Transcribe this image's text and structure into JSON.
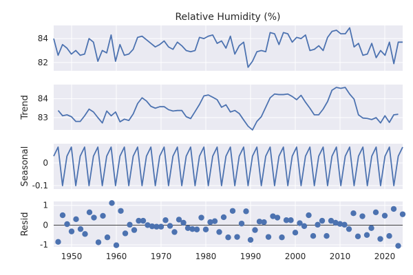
{
  "chart_data": [
    {
      "type": "line",
      "title": "Relative Humidity (%)",
      "ylabel": "",
      "x_start": 1946,
      "x_end": 2024,
      "xlim": [
        1946,
        2024
      ],
      "ylim": [
        81.3,
        85.1
      ],
      "yticks": [
        82,
        84
      ],
      "grid": true,
      "values": [
        84.0,
        82.6,
        83.5,
        83.2,
        82.7,
        83.0,
        82.6,
        82.7,
        84.0,
        83.7,
        82.1,
        83.0,
        82.8,
        84.3,
        82.1,
        83.5,
        82.6,
        82.7,
        83.1,
        84.1,
        84.2,
        83.9,
        83.6,
        83.3,
        83.5,
        83.8,
        83.3,
        83.1,
        83.7,
        83.4,
        83.0,
        82.9,
        83.0,
        84.1,
        84.0,
        84.2,
        84.3,
        83.6,
        83.8,
        83.2,
        84.2,
        82.7,
        83.4,
        83.7,
        81.6,
        82.1,
        82.9,
        83.0,
        82.9,
        84.5,
        84.4,
        83.5,
        84.5,
        84.4,
        83.7,
        84.1,
        84.0,
        84.3,
        83.0,
        83.1,
        83.4,
        83.0,
        84.1,
        84.6,
        84.7,
        84.4,
        84.4,
        84.9,
        83.3,
        83.6,
        82.6,
        82.7,
        83.6,
        82.4,
        83.0,
        82.6,
        83.7,
        81.9,
        83.7,
        83.7
      ]
    },
    {
      "type": "line",
      "title": "",
      "ylabel": "Trend",
      "x_start": 1947,
      "x_end": 2023,
      "xlim": [
        1946,
        2024
      ],
      "ylim": [
        82.35,
        84.75
      ],
      "yticks": [
        83,
        84
      ],
      "grid": true,
      "values": [
        83.38,
        83.1,
        83.15,
        83.05,
        82.8,
        82.8,
        83.1,
        83.45,
        83.3,
        83.0,
        82.72,
        83.35,
        83.1,
        83.3,
        82.78,
        82.92,
        82.85,
        83.2,
        83.75,
        84.05,
        83.88,
        83.6,
        83.5,
        83.58,
        83.58,
        83.42,
        83.35,
        83.38,
        83.38,
        83.05,
        82.95,
        83.32,
        83.7,
        84.15,
        84.2,
        84.08,
        83.95,
        83.55,
        83.68,
        83.3,
        83.38,
        83.22,
        82.88,
        82.55,
        82.35,
        82.8,
        83.05,
        83.55,
        84.05,
        84.25,
        84.22,
        84.22,
        84.25,
        84.12,
        83.95,
        84.18,
        83.82,
        83.5,
        83.15,
        83.15,
        83.45,
        83.85,
        84.45,
        84.6,
        84.55,
        84.6,
        84.25,
        83.98,
        83.15,
        82.98,
        82.96,
        82.9,
        83.0,
        82.72,
        83.1,
        82.75,
        83.15,
        83.18
      ]
    },
    {
      "type": "line",
      "title": "",
      "ylabel": "Seasonal",
      "x_start": 1946,
      "x_end": 2024,
      "xlim": [
        1946,
        2024
      ],
      "ylim": [
        -0.115,
        0.085
      ],
      "yticks": [
        -0.1,
        0.0
      ],
      "grid": true,
      "cycle": [
        0.03,
        0.07,
        -0.1,
        0.03,
        0.07,
        -0.1,
        0.03,
        0.07,
        -0.1,
        0.03,
        0.07,
        -0.1,
        0.03,
        0.07,
        -0.1,
        0.03,
        0.07,
        -0.1,
        0.03,
        0.07,
        -0.1,
        0.03,
        0.07,
        -0.1,
        0.03,
        0.07,
        -0.1,
        0.03,
        0.07,
        -0.1,
        0.03,
        0.07,
        -0.1,
        0.03,
        0.07,
        -0.1,
        0.03,
        0.07,
        -0.1,
        0.03,
        0.07,
        -0.1,
        0.03,
        0.07,
        -0.1,
        0.03,
        0.07,
        -0.1,
        0.03,
        0.07,
        -0.1,
        0.03,
        0.07,
        -0.1,
        0.03,
        0.07,
        -0.1,
        0.03,
        0.07,
        -0.1,
        0.03,
        0.07,
        -0.1,
        0.03,
        0.07,
        -0.1,
        0.03,
        0.07,
        -0.1,
        0.03,
        0.07,
        -0.1,
        0.03,
        0.07,
        -0.1,
        0.03,
        0.07,
        -0.1,
        0.03,
        0.07
      ]
    },
    {
      "type": "scatter",
      "title": "",
      "ylabel": "Resid",
      "xlabel": "",
      "xlim": [
        1946,
        2024
      ],
      "ylim": [
        -1.1,
        1.2
      ],
      "yticks": [
        -1,
        0,
        1
      ],
      "xticks": [
        1950,
        1960,
        1970,
        1980,
        1990,
        2000,
        2010,
        2020
      ],
      "grid": true,
      "zero_line": true,
      "points": [
        {
          "x": 1947,
          "y": -0.85
        },
        {
          "x": 1948,
          "y": 0.5
        },
        {
          "x": 1949,
          "y": 0.05
        },
        {
          "x": 1950,
          "y": -0.32
        },
        {
          "x": 1951,
          "y": 0.3
        },
        {
          "x": 1952,
          "y": -0.2
        },
        {
          "x": 1953,
          "y": -0.45
        },
        {
          "x": 1954,
          "y": 0.65
        },
        {
          "x": 1955,
          "y": 0.38
        },
        {
          "x": 1956,
          "y": -0.87
        },
        {
          "x": 1957,
          "y": 0.47
        },
        {
          "x": 1958,
          "y": -0.62
        },
        {
          "x": 1959,
          "y": 1.12
        },
        {
          "x": 1960,
          "y": -1.02
        },
        {
          "x": 1961,
          "y": 0.72
        },
        {
          "x": 1962,
          "y": -0.42
        },
        {
          "x": 1963,
          "y": 0.02
        },
        {
          "x": 1964,
          "y": -0.25
        },
        {
          "x": 1965,
          "y": 0.22
        },
        {
          "x": 1966,
          "y": 0.22
        },
        {
          "x": 1967,
          "y": 0.0
        },
        {
          "x": 1968,
          "y": -0.06
        },
        {
          "x": 1969,
          "y": -0.08
        },
        {
          "x": 1970,
          "y": -0.08
        },
        {
          "x": 1971,
          "y": 0.25
        },
        {
          "x": 1972,
          "y": -0.04
        },
        {
          "x": 1973,
          "y": -0.35
        },
        {
          "x": 1974,
          "y": 0.28
        },
        {
          "x": 1975,
          "y": 0.12
        },
        {
          "x": 1976,
          "y": -0.15
        },
        {
          "x": 1977,
          "y": -0.2
        },
        {
          "x": 1978,
          "y": -0.22
        },
        {
          "x": 1979,
          "y": 0.38
        },
        {
          "x": 1980,
          "y": -0.22
        },
        {
          "x": 1981,
          "y": 0.15
        },
        {
          "x": 1982,
          "y": 0.2
        },
        {
          "x": 1983,
          "y": -0.35
        },
        {
          "x": 1984,
          "y": 0.4
        },
        {
          "x": 1985,
          "y": -0.62
        },
        {
          "x": 1986,
          "y": 0.72
        },
        {
          "x": 1987,
          "y": -0.6
        },
        {
          "x": 1988,
          "y": 0.08
        },
        {
          "x": 1989,
          "y": 0.7
        },
        {
          "x": 1990,
          "y": -0.75
        },
        {
          "x": 1991,
          "y": -0.25
        },
        {
          "x": 1992,
          "y": 0.18
        },
        {
          "x": 1993,
          "y": 0.15
        },
        {
          "x": 1994,
          "y": -0.6
        },
        {
          "x": 1995,
          "y": 0.45
        },
        {
          "x": 1996,
          "y": 0.38
        },
        {
          "x": 1997,
          "y": -0.62
        },
        {
          "x": 1998,
          "y": 0.25
        },
        {
          "x": 1999,
          "y": 0.25
        },
        {
          "x": 2000,
          "y": -0.38
        },
        {
          "x": 2001,
          "y": 0.1
        },
        {
          "x": 2002,
          "y": -0.05
        },
        {
          "x": 2003,
          "y": 0.5
        },
        {
          "x": 2004,
          "y": -0.55
        },
        {
          "x": 2005,
          "y": 0.02
        },
        {
          "x": 2006,
          "y": 0.22
        },
        {
          "x": 2007,
          "y": -0.55
        },
        {
          "x": 2008,
          "y": 0.22
        },
        {
          "x": 2009,
          "y": 0.12
        },
        {
          "x": 2010,
          "y": 0.06
        },
        {
          "x": 2011,
          "y": 0.02
        },
        {
          "x": 2012,
          "y": -0.2
        },
        {
          "x": 2013,
          "y": 0.6
        },
        {
          "x": 2014,
          "y": -0.57
        },
        {
          "x": 2015,
          "y": 0.45
        },
        {
          "x": 2016,
          "y": -0.5
        },
        {
          "x": 2017,
          "y": -0.15
        },
        {
          "x": 2018,
          "y": 0.65
        },
        {
          "x": 2019,
          "y": -0.7
        },
        {
          "x": 2020,
          "y": 0.48
        },
        {
          "x": 2021,
          "y": -0.55
        },
        {
          "x": 2022,
          "y": 0.82
        },
        {
          "x": 2023,
          "y": -1.05
        },
        {
          "x": 2024,
          "y": 0.55
        }
      ]
    }
  ],
  "colors": {
    "series": "#4c72b0",
    "panel_bg": "#eaeaf2",
    "grid": "#ffffff",
    "text": "#262626"
  }
}
